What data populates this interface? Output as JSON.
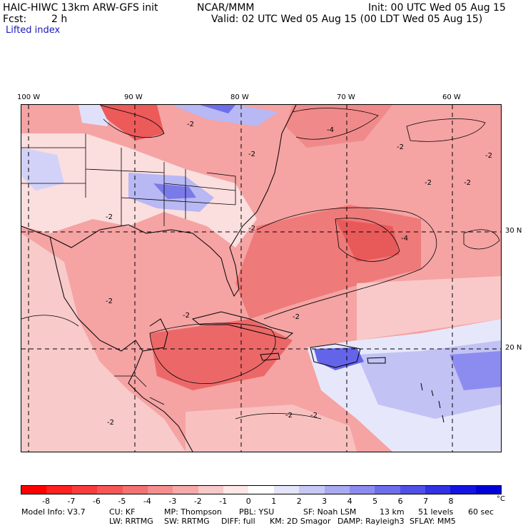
{
  "header": {
    "model_name": "HAIC-HIWC 13km ARW-GFS init",
    "org": "NCAR/MMM",
    "init_time": "Init: 00 UTC Wed 05 Aug 15",
    "forecast_label": "Fcst:",
    "forecast_hours": "2 h",
    "valid_time": "Valid: 02 UTC Wed 05 Aug 15 (00 LDT Wed 05 Aug 15)",
    "field_name": "Lifted index"
  },
  "map": {
    "longitude_labels": [
      "100 W",
      "90 W",
      "80 W",
      "70 W",
      "60 W"
    ],
    "latitude_labels": [
      "30 N",
      "20 N"
    ],
    "contour_labels": [
      "-2",
      "-2",
      "-2",
      "-4",
      "-2",
      "-2",
      "-2",
      "-2",
      "-4",
      "-2",
      "-2",
      "-2",
      "-2",
      "-2",
      "-2",
      "-2"
    ],
    "colors": {
      "land_neutral": "#fdeaea",
      "ocean_warm": "#f49a9a",
      "stable_blue": "#8c8cf0",
      "border": "#000000",
      "grid": "#000000"
    }
  },
  "colorbar": {
    "colors": [
      "#ff0000",
      "#ff2020",
      "#f83c3c",
      "#f55656",
      "#f47272",
      "#f58e8e",
      "#f6aaaa",
      "#f9c9c9",
      "#fde6e6",
      "#ffffff",
      "#e4e4fb",
      "#c8c8f7",
      "#aaaaf3",
      "#8c8cf0",
      "#6e6eec",
      "#5050e8",
      "#3232e4",
      "#1414e0",
      "#0000d8"
    ],
    "tick_labels": [
      "-8",
      "-7",
      "-6",
      "-5",
      "-4",
      "-3",
      "-2",
      "-1",
      "0",
      "1",
      "2",
      "3",
      "4",
      "5",
      "6",
      "7",
      "8"
    ],
    "unit": "°C"
  },
  "model_info": {
    "line1": [
      "Model Info: V3.7",
      "CU: KF",
      "MP: Thompson",
      "PBL: YSU",
      "SF: Noah LSM",
      "13 km",
      "51 levels",
      "60 sec"
    ],
    "line2": [
      "LW: RRTMG",
      "SW: RRTMG",
      "DIFF: full",
      "KM: 2D Smagor",
      "DAMP: Rayleigh3",
      "SFLAY: MM5"
    ]
  }
}
